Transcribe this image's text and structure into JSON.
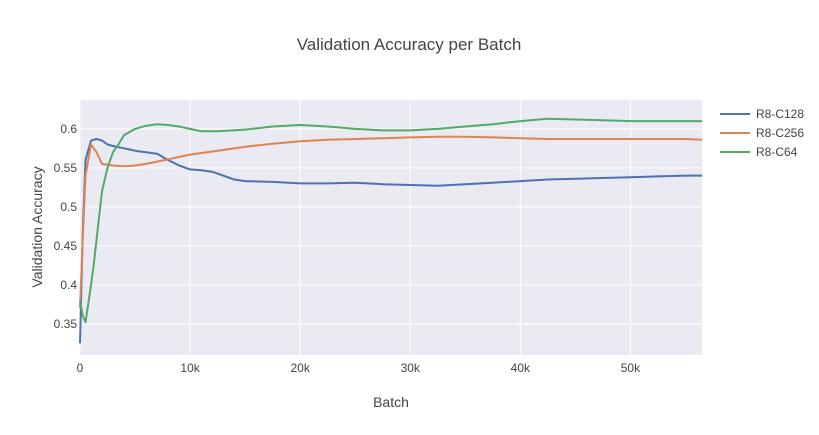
{
  "chart_data": {
    "type": "line",
    "title": "Validation Accuracy per Batch",
    "xlabel": "Batch",
    "ylabel": "Validation Accuracy",
    "xlim": [
      0,
      56500
    ],
    "ylim": [
      0.31,
      0.637
    ],
    "x_ticks": [
      0,
      10000,
      20000,
      30000,
      40000,
      50000
    ],
    "x_tick_labels": [
      "0",
      "10k",
      "20k",
      "30k",
      "40k",
      "50k"
    ],
    "y_ticks": [
      0.35,
      0.4,
      0.45,
      0.5,
      0.55,
      0.6
    ],
    "y_tick_labels": [
      "0.35",
      "0.4",
      "0.45",
      "0.5",
      "0.55",
      "0.6"
    ],
    "grid": true,
    "legend_position": "top-right",
    "series": [
      {
        "name": "R8-C128",
        "color": "#4c72b0",
        "x": [
          0,
          250,
          500,
          1000,
          1500,
          2000,
          2500,
          3000,
          4000,
          5000,
          6000,
          7000,
          8000,
          9000,
          10000,
          11000,
          12000,
          13000,
          14000,
          15000,
          17500,
          20000,
          22500,
          25000,
          27500,
          30000,
          32500,
          35000,
          37500,
          40000,
          42500,
          45000,
          47500,
          50000,
          52500,
          55000,
          56500
        ],
        "y": [
          0.325,
          0.47,
          0.56,
          0.585,
          0.587,
          0.585,
          0.58,
          0.578,
          0.575,
          0.572,
          0.57,
          0.568,
          0.56,
          0.553,
          0.548,
          0.547,
          0.545,
          0.54,
          0.535,
          0.533,
          0.532,
          0.53,
          0.53,
          0.531,
          0.529,
          0.528,
          0.527,
          0.529,
          0.531,
          0.533,
          0.535,
          0.536,
          0.537,
          0.538,
          0.539,
          0.54,
          0.54
        ]
      },
      {
        "name": "R8-C256",
        "color": "#dd8452",
        "x": [
          0,
          250,
          500,
          1000,
          1500,
          2000,
          3000,
          4000,
          5000,
          6000,
          7000,
          8000,
          9000,
          10000,
          12500,
          15000,
          17500,
          20000,
          22500,
          25000,
          27500,
          30000,
          32500,
          35000,
          37500,
          40000,
          42500,
          45000,
          47500,
          50000,
          52500,
          55000,
          56500
        ],
        "y": [
          0.37,
          0.46,
          0.54,
          0.58,
          0.57,
          0.555,
          0.553,
          0.552,
          0.553,
          0.555,
          0.558,
          0.561,
          0.564,
          0.567,
          0.572,
          0.577,
          0.581,
          0.584,
          0.586,
          0.587,
          0.588,
          0.589,
          0.59,
          0.59,
          0.589,
          0.588,
          0.587,
          0.587,
          0.587,
          0.587,
          0.587,
          0.587,
          0.586
        ]
      },
      {
        "name": "R8-C64",
        "color": "#55a868",
        "x": [
          0,
          250,
          500,
          800,
          1200,
          1600,
          2000,
          2500,
          3000,
          3500,
          4000,
          5000,
          6000,
          7000,
          8000,
          9000,
          10000,
          11000,
          12500,
          15000,
          17500,
          20000,
          22500,
          25000,
          27500,
          30000,
          32500,
          35000,
          37500,
          40000,
          42500,
          45000,
          47500,
          50000,
          52500,
          55000,
          56500
        ],
        "y": [
          0.38,
          0.36,
          0.352,
          0.38,
          0.42,
          0.47,
          0.52,
          0.55,
          0.57,
          0.58,
          0.592,
          0.6,
          0.604,
          0.606,
          0.605,
          0.603,
          0.6,
          0.597,
          0.597,
          0.599,
          0.603,
          0.605,
          0.603,
          0.6,
          0.598,
          0.598,
          0.6,
          0.603,
          0.606,
          0.61,
          0.613,
          0.612,
          0.611,
          0.61,
          0.61,
          0.61,
          0.61
        ]
      }
    ]
  }
}
